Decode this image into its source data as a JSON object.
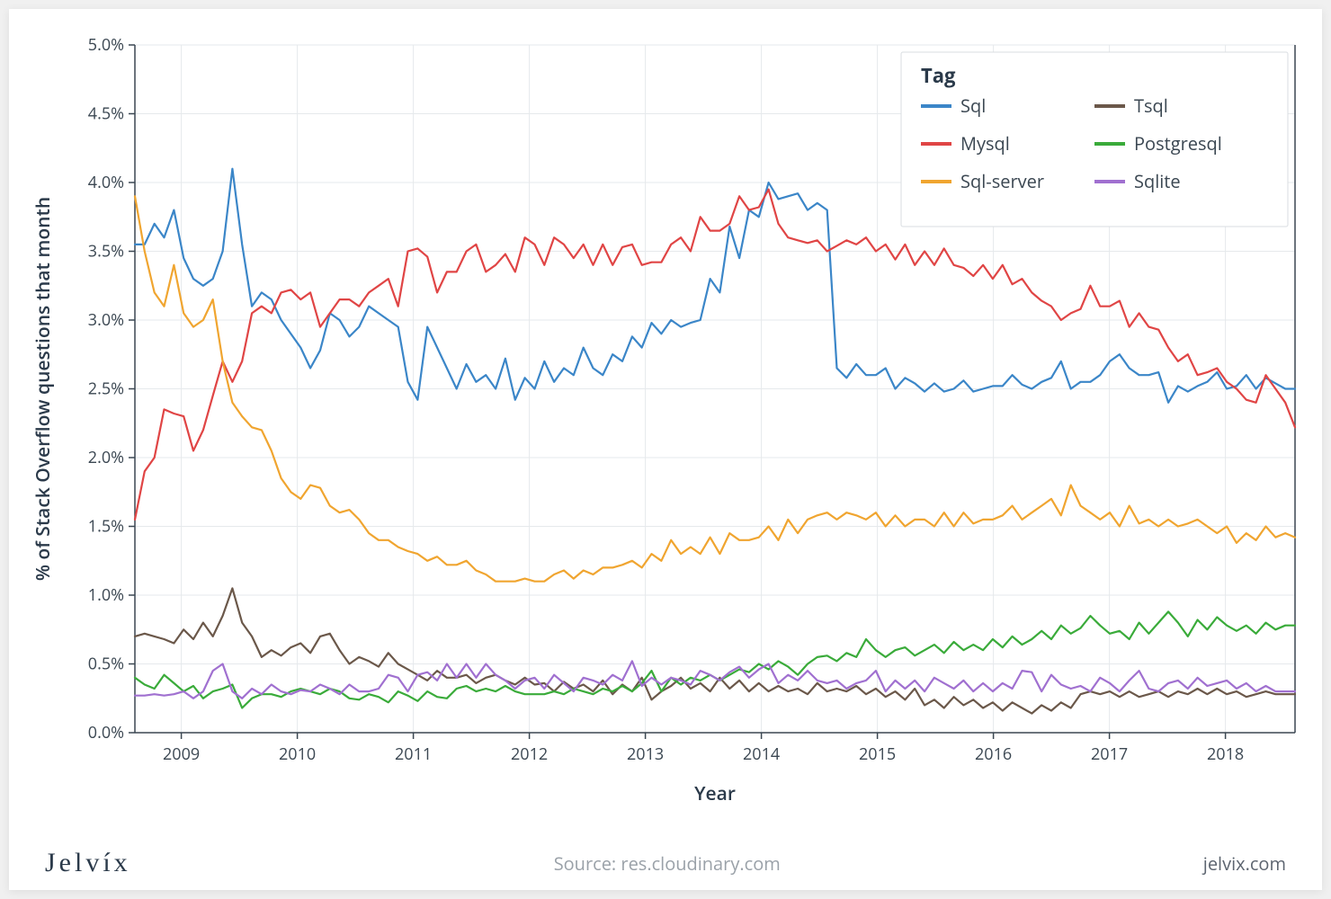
{
  "chart": {
    "type": "line",
    "background_color": "#ffffff",
    "plot_border_color": "#3b4752",
    "grid_color": "#e6e9ec",
    "line_width": 2.2,
    "x": {
      "label": "Year",
      "min": 2008.6,
      "max": 2018.6,
      "ticks": [
        2009,
        2010,
        2011,
        2012,
        2013,
        2014,
        2015,
        2016,
        2017,
        2018
      ],
      "tick_format": "int"
    },
    "y": {
      "label": "% of Stack Overflow questions that month",
      "min": 0.0,
      "max": 5.0,
      "ticks": [
        0.0,
        0.5,
        1.0,
        1.5,
        2.0,
        2.5,
        3.0,
        3.5,
        4.0,
        4.5,
        5.0
      ],
      "tick_format": "pct1"
    },
    "legend": {
      "title": "Tag",
      "columns": 2,
      "position": "top-right"
    },
    "series": [
      {
        "name": "Sql",
        "color": "#3b86c8",
        "values": [
          3.55,
          3.55,
          3.7,
          3.6,
          3.8,
          3.45,
          3.3,
          3.25,
          3.3,
          3.5,
          4.1,
          3.55,
          3.1,
          3.2,
          3.15,
          3.0,
          2.9,
          2.8,
          2.65,
          2.78,
          3.05,
          3.0,
          2.88,
          2.95,
          3.1,
          3.05,
          3.0,
          2.95,
          2.55,
          2.42,
          2.95,
          2.8,
          2.65,
          2.5,
          2.68,
          2.55,
          2.6,
          2.5,
          2.72,
          2.42,
          2.58,
          2.5,
          2.7,
          2.55,
          2.65,
          2.6,
          2.8,
          2.65,
          2.6,
          2.75,
          2.7,
          2.88,
          2.8,
          2.98,
          2.9,
          3.0,
          2.95,
          2.98,
          3.0,
          3.3,
          3.2,
          3.68,
          3.45,
          3.8,
          3.75,
          4.0,
          3.88,
          3.9,
          3.92,
          3.8,
          3.85,
          3.8,
          2.65,
          2.58,
          2.68,
          2.6,
          2.6,
          2.65,
          2.5,
          2.58,
          2.54,
          2.48,
          2.54,
          2.48,
          2.5,
          2.56,
          2.48,
          2.5,
          2.52,
          2.52,
          2.6,
          2.53,
          2.5,
          2.55,
          2.58,
          2.7,
          2.5,
          2.55,
          2.55,
          2.6,
          2.7,
          2.75,
          2.65,
          2.6,
          2.6,
          2.62,
          2.4,
          2.52,
          2.48,
          2.52,
          2.55,
          2.62,
          2.5,
          2.52,
          2.6,
          2.5,
          2.58,
          2.54,
          2.5,
          2.5
        ]
      },
      {
        "name": "Mysql",
        "color": "#e04545",
        "values": [
          1.55,
          1.9,
          2.0,
          2.35,
          2.32,
          2.3,
          2.05,
          2.2,
          2.45,
          2.7,
          2.55,
          2.7,
          3.05,
          3.1,
          3.05,
          3.2,
          3.22,
          3.15,
          3.2,
          2.95,
          3.05,
          3.15,
          3.15,
          3.1,
          3.2,
          3.25,
          3.3,
          3.1,
          3.5,
          3.52,
          3.46,
          3.2,
          3.35,
          3.35,
          3.5,
          3.55,
          3.35,
          3.4,
          3.48,
          3.35,
          3.6,
          3.55,
          3.4,
          3.6,
          3.55,
          3.45,
          3.55,
          3.4,
          3.55,
          3.4,
          3.53,
          3.55,
          3.4,
          3.42,
          3.42,
          3.55,
          3.6,
          3.5,
          3.75,
          3.65,
          3.65,
          3.7,
          3.9,
          3.8,
          3.82,
          3.95,
          3.7,
          3.6,
          3.58,
          3.56,
          3.58,
          3.5,
          3.54,
          3.58,
          3.55,
          3.6,
          3.5,
          3.55,
          3.44,
          3.55,
          3.4,
          3.5,
          3.4,
          3.52,
          3.4,
          3.38,
          3.32,
          3.4,
          3.3,
          3.4,
          3.26,
          3.3,
          3.2,
          3.14,
          3.1,
          3.0,
          3.05,
          3.08,
          3.25,
          3.1,
          3.1,
          3.14,
          2.95,
          3.05,
          2.95,
          2.93,
          2.8,
          2.7,
          2.75,
          2.6,
          2.62,
          2.65,
          2.55,
          2.5,
          2.42,
          2.4,
          2.6,
          2.5,
          2.4,
          2.22
        ]
      },
      {
        "name": "Sql-server",
        "color": "#f0a530",
        "values": [
          3.9,
          3.5,
          3.2,
          3.1,
          3.4,
          3.05,
          2.95,
          3.0,
          3.15,
          2.7,
          2.4,
          2.3,
          2.22,
          2.2,
          2.05,
          1.85,
          1.75,
          1.7,
          1.8,
          1.78,
          1.65,
          1.6,
          1.62,
          1.55,
          1.45,
          1.4,
          1.4,
          1.35,
          1.32,
          1.3,
          1.25,
          1.28,
          1.22,
          1.22,
          1.25,
          1.18,
          1.15,
          1.1,
          1.1,
          1.1,
          1.12,
          1.1,
          1.1,
          1.15,
          1.18,
          1.12,
          1.18,
          1.15,
          1.2,
          1.2,
          1.22,
          1.25,
          1.2,
          1.3,
          1.25,
          1.4,
          1.3,
          1.35,
          1.3,
          1.42,
          1.3,
          1.45,
          1.4,
          1.4,
          1.42,
          1.5,
          1.4,
          1.55,
          1.45,
          1.55,
          1.58,
          1.6,
          1.55,
          1.6,
          1.58,
          1.55,
          1.6,
          1.5,
          1.58,
          1.5,
          1.55,
          1.55,
          1.5,
          1.6,
          1.5,
          1.6,
          1.52,
          1.55,
          1.55,
          1.58,
          1.65,
          1.55,
          1.6,
          1.65,
          1.7,
          1.58,
          1.8,
          1.65,
          1.6,
          1.55,
          1.6,
          1.5,
          1.65,
          1.52,
          1.55,
          1.5,
          1.55,
          1.5,
          1.52,
          1.55,
          1.5,
          1.45,
          1.5,
          1.38,
          1.45,
          1.4,
          1.5,
          1.42,
          1.45,
          1.42
        ]
      },
      {
        "name": "Tsql",
        "color": "#6b584a",
        "values": [
          0.7,
          0.72,
          0.7,
          0.68,
          0.65,
          0.75,
          0.68,
          0.8,
          0.7,
          0.85,
          1.05,
          0.8,
          0.7,
          0.55,
          0.6,
          0.56,
          0.62,
          0.65,
          0.58,
          0.7,
          0.72,
          0.6,
          0.5,
          0.55,
          0.52,
          0.48,
          0.58,
          0.5,
          0.46,
          0.42,
          0.38,
          0.45,
          0.4,
          0.4,
          0.42,
          0.36,
          0.4,
          0.42,
          0.38,
          0.35,
          0.4,
          0.35,
          0.36,
          0.3,
          0.37,
          0.32,
          0.35,
          0.3,
          0.38,
          0.28,
          0.35,
          0.3,
          0.4,
          0.24,
          0.3,
          0.34,
          0.4,
          0.32,
          0.36,
          0.3,
          0.4,
          0.32,
          0.38,
          0.3,
          0.36,
          0.3,
          0.34,
          0.3,
          0.32,
          0.28,
          0.36,
          0.3,
          0.32,
          0.3,
          0.34,
          0.28,
          0.32,
          0.26,
          0.3,
          0.24,
          0.32,
          0.2,
          0.24,
          0.18,
          0.26,
          0.2,
          0.24,
          0.18,
          0.22,
          0.16,
          0.22,
          0.18,
          0.14,
          0.2,
          0.16,
          0.22,
          0.18,
          0.28,
          0.3,
          0.28,
          0.3,
          0.26,
          0.3,
          0.26,
          0.28,
          0.3,
          0.26,
          0.3,
          0.28,
          0.32,
          0.28,
          0.32,
          0.28,
          0.3,
          0.26,
          0.28,
          0.3,
          0.28,
          0.28,
          0.28
        ]
      },
      {
        "name": "Postgresql",
        "color": "#3aab3a",
        "values": [
          0.4,
          0.35,
          0.32,
          0.42,
          0.36,
          0.3,
          0.34,
          0.25,
          0.3,
          0.32,
          0.35,
          0.18,
          0.25,
          0.28,
          0.28,
          0.26,
          0.3,
          0.32,
          0.3,
          0.28,
          0.32,
          0.3,
          0.25,
          0.24,
          0.28,
          0.26,
          0.22,
          0.3,
          0.27,
          0.23,
          0.3,
          0.26,
          0.25,
          0.32,
          0.34,
          0.3,
          0.32,
          0.3,
          0.34,
          0.3,
          0.28,
          0.28,
          0.28,
          0.3,
          0.28,
          0.32,
          0.3,
          0.28,
          0.32,
          0.3,
          0.34,
          0.3,
          0.36,
          0.45,
          0.3,
          0.4,
          0.35,
          0.4,
          0.38,
          0.42,
          0.38,
          0.42,
          0.46,
          0.44,
          0.5,
          0.46,
          0.52,
          0.48,
          0.42,
          0.5,
          0.55,
          0.56,
          0.52,
          0.58,
          0.55,
          0.68,
          0.6,
          0.55,
          0.6,
          0.62,
          0.56,
          0.6,
          0.64,
          0.58,
          0.66,
          0.6,
          0.64,
          0.6,
          0.68,
          0.62,
          0.7,
          0.64,
          0.68,
          0.74,
          0.68,
          0.78,
          0.72,
          0.76,
          0.85,
          0.78,
          0.72,
          0.74,
          0.68,
          0.8,
          0.72,
          0.8,
          0.88,
          0.8,
          0.7,
          0.82,
          0.75,
          0.84,
          0.78,
          0.74,
          0.78,
          0.72,
          0.8,
          0.75,
          0.78,
          0.78
        ]
      },
      {
        "name": "Sqlite",
        "color": "#a070d0",
        "values": [
          0.27,
          0.27,
          0.28,
          0.27,
          0.28,
          0.3,
          0.25,
          0.3,
          0.45,
          0.5,
          0.3,
          0.25,
          0.32,
          0.28,
          0.35,
          0.3,
          0.28,
          0.31,
          0.3,
          0.35,
          0.32,
          0.28,
          0.35,
          0.3,
          0.3,
          0.32,
          0.42,
          0.4,
          0.3,
          0.42,
          0.44,
          0.38,
          0.5,
          0.4,
          0.5,
          0.4,
          0.5,
          0.42,
          0.38,
          0.32,
          0.38,
          0.4,
          0.32,
          0.42,
          0.36,
          0.3,
          0.4,
          0.38,
          0.35,
          0.42,
          0.38,
          0.52,
          0.34,
          0.4,
          0.35,
          0.4,
          0.38,
          0.35,
          0.45,
          0.42,
          0.38,
          0.44,
          0.48,
          0.4,
          0.46,
          0.5,
          0.36,
          0.42,
          0.38,
          0.45,
          0.38,
          0.36,
          0.38,
          0.32,
          0.36,
          0.38,
          0.45,
          0.3,
          0.38,
          0.32,
          0.38,
          0.3,
          0.4,
          0.36,
          0.32,
          0.38,
          0.3,
          0.36,
          0.3,
          0.36,
          0.32,
          0.45,
          0.44,
          0.3,
          0.42,
          0.35,
          0.32,
          0.34,
          0.3,
          0.4,
          0.36,
          0.3,
          0.38,
          0.45,
          0.32,
          0.3,
          0.36,
          0.38,
          0.32,
          0.4,
          0.34,
          0.36,
          0.38,
          0.32,
          0.36,
          0.3,
          0.34,
          0.3,
          0.3,
          0.3
        ]
      }
    ]
  },
  "footer": {
    "logo": "Jelvíx",
    "source_prefix": "Source: ",
    "source": "res.cloudinary.com",
    "site": "jelvix.com"
  }
}
